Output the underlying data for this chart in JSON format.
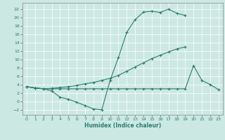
{
  "bg_color": "#cce8e3",
  "line_color": "#2d7d6e",
  "grid_color": "#ffffff",
  "xlabel": "Humidex (Indice chaleur)",
  "xlim": [
    -0.5,
    23.5
  ],
  "ylim": [
    -3.2,
    23.5
  ],
  "xticks": [
    0,
    1,
    2,
    3,
    4,
    5,
    6,
    7,
    8,
    9,
    10,
    11,
    12,
    13,
    14,
    15,
    16,
    17,
    18,
    19,
    20,
    21,
    22,
    23
  ],
  "yticks": [
    -2,
    0,
    2,
    4,
    6,
    8,
    10,
    12,
    14,
    16,
    18,
    20,
    22
  ],
  "line1_x": [
    0,
    1,
    2,
    3,
    4,
    5,
    6,
    7,
    8,
    9,
    10,
    11,
    12,
    13,
    14,
    15,
    16,
    17,
    18,
    19
  ],
  "line1_y": [
    3.5,
    3.2,
    3.0,
    2.5,
    1.0,
    0.5,
    -0.2,
    -1.0,
    -1.8,
    -2.0,
    5.0,
    10.5,
    16.5,
    19.5,
    21.3,
    21.5,
    21.2,
    22.0,
    21.0,
    20.5
  ],
  "line2_x": [
    0,
    1,
    2,
    3,
    4,
    5,
    6,
    7,
    8,
    9,
    10,
    11,
    12,
    13,
    14,
    15,
    16,
    17,
    18,
    19
  ],
  "line2_y": [
    3.5,
    3.2,
    3.0,
    3.1,
    3.3,
    3.5,
    3.8,
    4.2,
    4.5,
    5.0,
    5.5,
    6.2,
    7.2,
    8.2,
    9.2,
    10.2,
    11.0,
    11.8,
    12.5,
    13.0
  ],
  "line3_x": [
    0,
    1,
    2,
    3,
    4,
    5,
    6,
    7,
    8,
    9,
    10,
    11,
    12,
    13,
    14,
    15,
    16,
    17,
    18,
    19,
    20,
    21,
    22,
    23
  ],
  "line3_y": [
    3.5,
    3.2,
    3.0,
    3.0,
    3.0,
    3.0,
    3.0,
    3.0,
    3.0,
    3.0,
    3.0,
    3.0,
    3.0,
    3.0,
    3.0,
    3.0,
    3.0,
    3.0,
    3.0,
    3.0,
    8.5,
    5.0,
    4.0,
    2.8
  ]
}
